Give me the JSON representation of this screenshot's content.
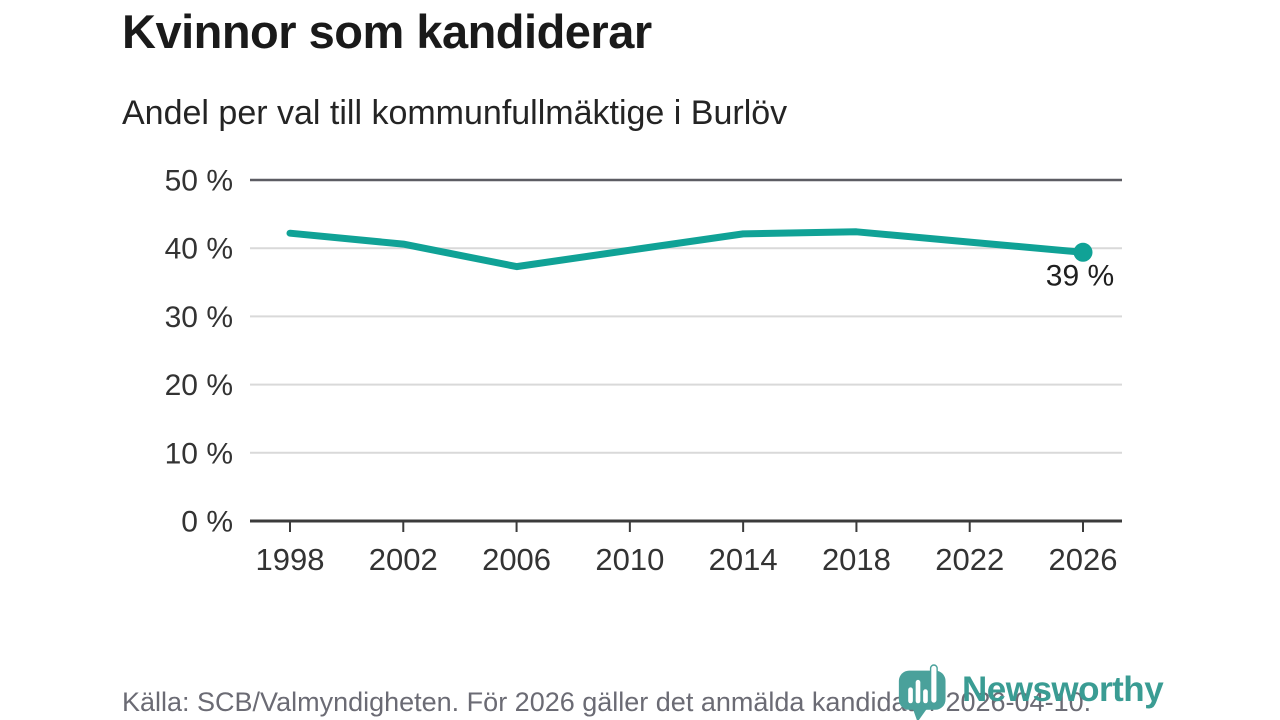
{
  "header": {
    "title": "Kvinnor som kandiderar",
    "subtitle": "Andel per val till kommunfullmäktige i Burlöv"
  },
  "chart_data": {
    "type": "line",
    "title": "Kvinnor som kandiderar",
    "subtitle": "Andel per val till kommunfullmäktige i Burlöv",
    "x": [
      1998,
      2002,
      2006,
      2010,
      2014,
      2018,
      2022,
      2026
    ],
    "x_labels": [
      "1998",
      "2002",
      "2006",
      "2010",
      "2014",
      "2018",
      "2022",
      "2026"
    ],
    "values": [
      42.2,
      40.6,
      37.3,
      39.7,
      42.1,
      42.4,
      40.9,
      39.4
    ],
    "unit": "%",
    "end_label": "39 %",
    "ylim": [
      0,
      50
    ],
    "yticks": [
      0,
      10,
      20,
      30,
      40,
      50
    ],
    "ytick_labels": [
      "0 %",
      "10 %",
      "20 %",
      "30 %",
      "40 %",
      "50 %"
    ],
    "grid": "horizontal-only",
    "legend": "none",
    "line_color": "#10a296",
    "grid_color_light": "#d9d9d9",
    "grid_color_dark": "#5d5d63",
    "axis_color": "#3b3b3b",
    "tick_text_color": "#333333",
    "end_label_color": "#1f1f1f"
  },
  "footer": {
    "source": "Källa: SCB/Valmyndigheten. För 2026 gäller det anmälda kandidater 2026-04-10."
  },
  "logo": {
    "text": "Newsworthy",
    "text_color": "#3a9c93",
    "icon_color": "#4aa19b"
  }
}
